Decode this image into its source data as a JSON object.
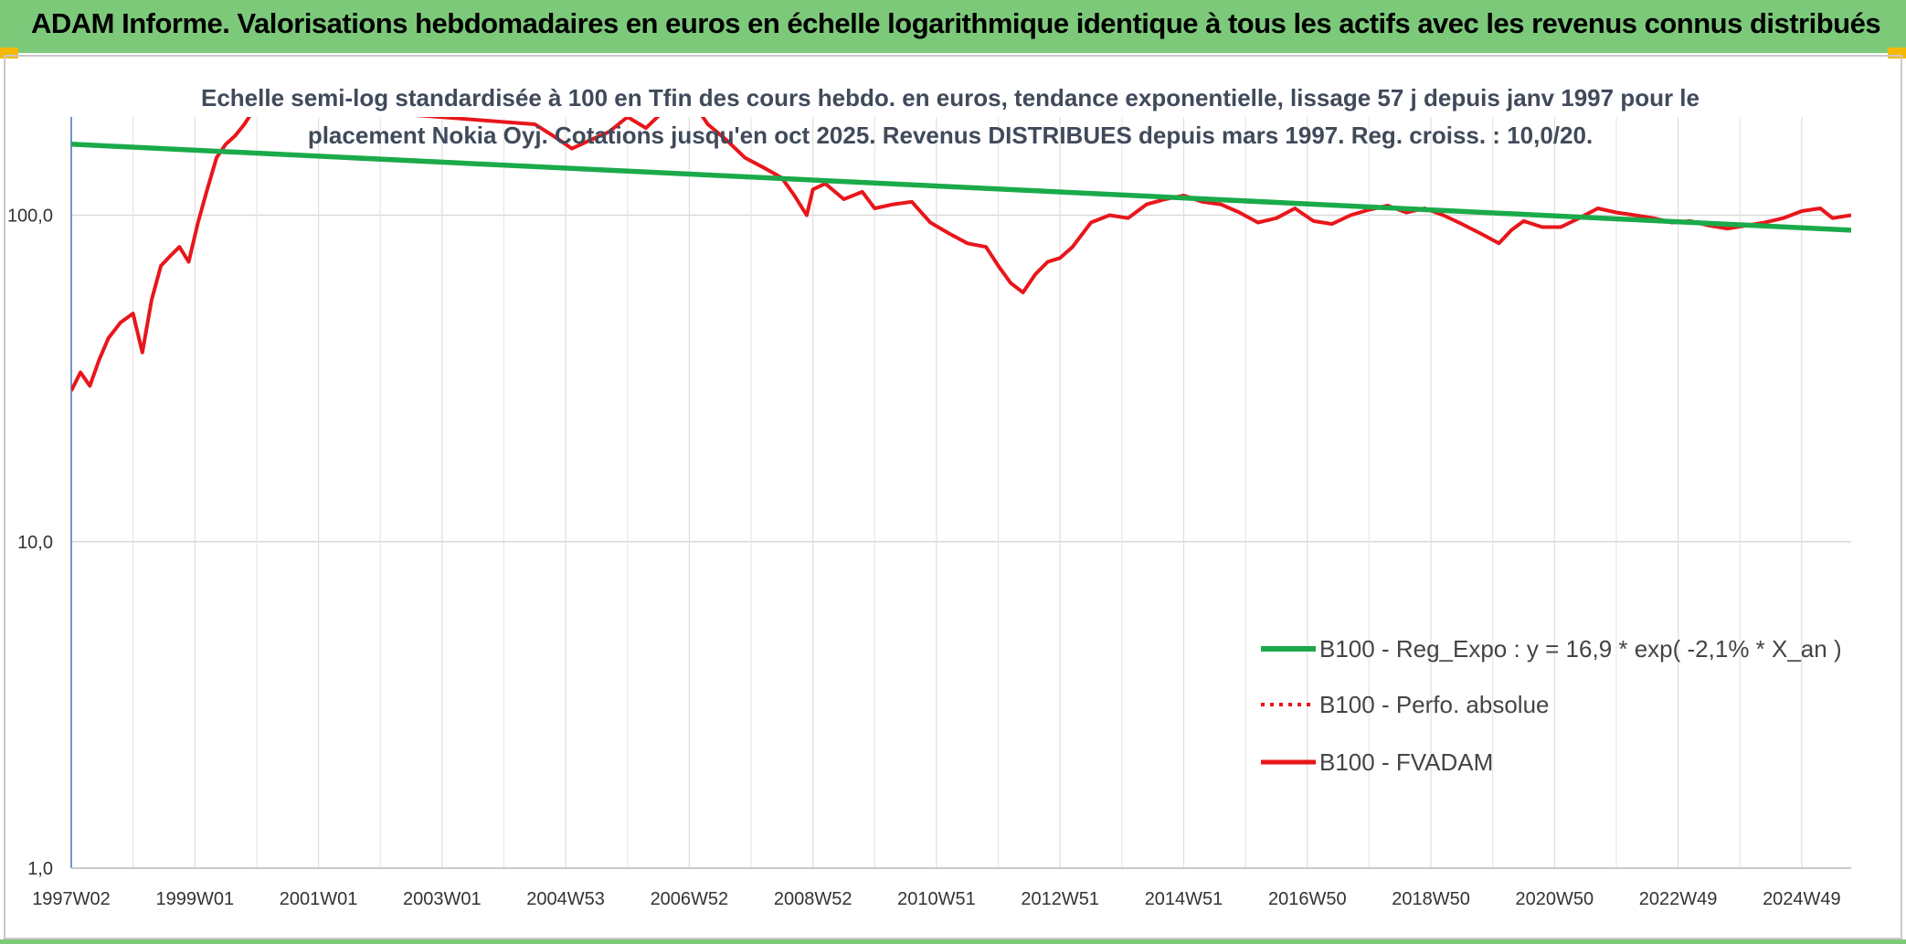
{
  "header": {
    "title": "ADAM Informe. Valorisations hebdomadaires en euros en échelle logarithmique identique à tous les actifs avec les revenus connus distribués"
  },
  "colors": {
    "banner": "#7dc97a",
    "trend": "#1aaa4a",
    "fvadam": "#e8161b",
    "perfo": "#e8161b"
  },
  "chart_data": {
    "type": "line",
    "title": "",
    "subtitle_lines": [
      "Echelle semi-log standardisée à 100 en Tfin des cours hebdo. en euros, tendance exponentielle, lissage 57 j depuis janv 1997 pour le",
      "placement Nokia Oyj. Cotations jusqu'en oct 2025. Revenus DISTRIBUES depuis mars 1997. Reg. croiss. : 10,0/20."
    ],
    "y_scale": "log",
    "ylim": [
      1,
      200
    ],
    "y_ticks": [
      {
        "value": 1,
        "label": "1,0"
      },
      {
        "value": 10,
        "label": "10,0"
      },
      {
        "value": 100,
        "label": "100,0"
      }
    ],
    "x_ticks": [
      "1997W02",
      "1999W01",
      "2001W01",
      "2003W01",
      "2004W53",
      "2006W52",
      "2008W52",
      "2010W51",
      "2012W51",
      "2014W51",
      "2016W50",
      "2018W50",
      "2020W50",
      "2022W49",
      "2024W49"
    ],
    "x_tick_years": [
      1997,
      1999,
      2001,
      2003,
      2005,
      2007,
      2009,
      2011,
      2013,
      2015,
      2017,
      2019,
      2021,
      2023,
      2025
    ],
    "xlim": [
      1997.0,
      2025.8
    ],
    "grid": true,
    "legend_position": "bottom-right",
    "series": [
      {
        "name": "B100 - Reg_Expo : y = 16,9 * exp( -2,1% *  X_an )",
        "style": "solid-green",
        "x": [
          1997.0,
          2025.8
        ],
        "y": [
          165,
          90
        ]
      },
      {
        "name": "B100 - Perfo. absolue",
        "style": "dotted-red",
        "x": [],
        "y": []
      },
      {
        "name": "B100 - FVADAM",
        "style": "solid-red",
        "x": [
          1997.0,
          1997.15,
          1997.3,
          1997.45,
          1997.6,
          1997.8,
          1998.0,
          1998.15,
          1998.3,
          1998.45,
          1998.6,
          1998.75,
          1998.9,
          1999.05,
          1999.2,
          1999.35,
          1999.5,
          1999.65,
          1999.8,
          1999.95,
          2000.1,
          2004.5,
          2004.8,
          2005.1,
          2005.4,
          2005.7,
          2006.0,
          2006.3,
          2006.6,
          2007.0,
          2007.3,
          2007.6,
          2007.9,
          2008.2,
          2008.5,
          2008.7,
          2008.9,
          2009.0,
          2009.2,
          2009.5,
          2009.8,
          2010.0,
          2010.3,
          2010.6,
          2010.9,
          2011.2,
          2011.5,
          2011.8,
          2012.0,
          2012.2,
          2012.4,
          2012.6,
          2012.8,
          2013.0,
          2013.2,
          2013.5,
          2013.8,
          2014.1,
          2014.4,
          2014.7,
          2015.0,
          2015.3,
          2015.6,
          2015.9,
          2016.2,
          2016.5,
          2016.8,
          2017.1,
          2017.4,
          2017.7,
          2018.0,
          2018.3,
          2018.6,
          2018.9,
          2019.2,
          2019.5,
          2019.8,
          2020.1,
          2020.3,
          2020.5,
          2020.8,
          2021.1,
          2021.4,
          2021.7,
          2022.0,
          2022.3,
          2022.6,
          2022.9,
          2023.2,
          2023.5,
          2023.8,
          2024.1,
          2024.4,
          2024.7,
          2025.0,
          2025.3,
          2025.5,
          2025.8
        ],
        "y": [
          29,
          33,
          30,
          36,
          42,
          47,
          50,
          38,
          55,
          70,
          75,
          80,
          72,
          95,
          120,
          150,
          165,
          175,
          190,
          210,
          220,
          190,
          175,
          160,
          170,
          180,
          200,
          185,
          210,
          230,
          190,
          170,
          150,
          140,
          130,
          115,
          100,
          120,
          125,
          112,
          118,
          105,
          108,
          110,
          95,
          88,
          82,
          80,
          70,
          62,
          58,
          66,
          72,
          74,
          80,
          95,
          100,
          98,
          108,
          112,
          115,
          110,
          108,
          102,
          95,
          98,
          105,
          96,
          94,
          100,
          104,
          107,
          102,
          105,
          100,
          94,
          88,
          82,
          90,
          96,
          92,
          92,
          98,
          105,
          102,
          100,
          98,
          95,
          96,
          93,
          91,
          93,
          95,
          98,
          103,
          105,
          98,
          100
        ]
      }
    ]
  }
}
